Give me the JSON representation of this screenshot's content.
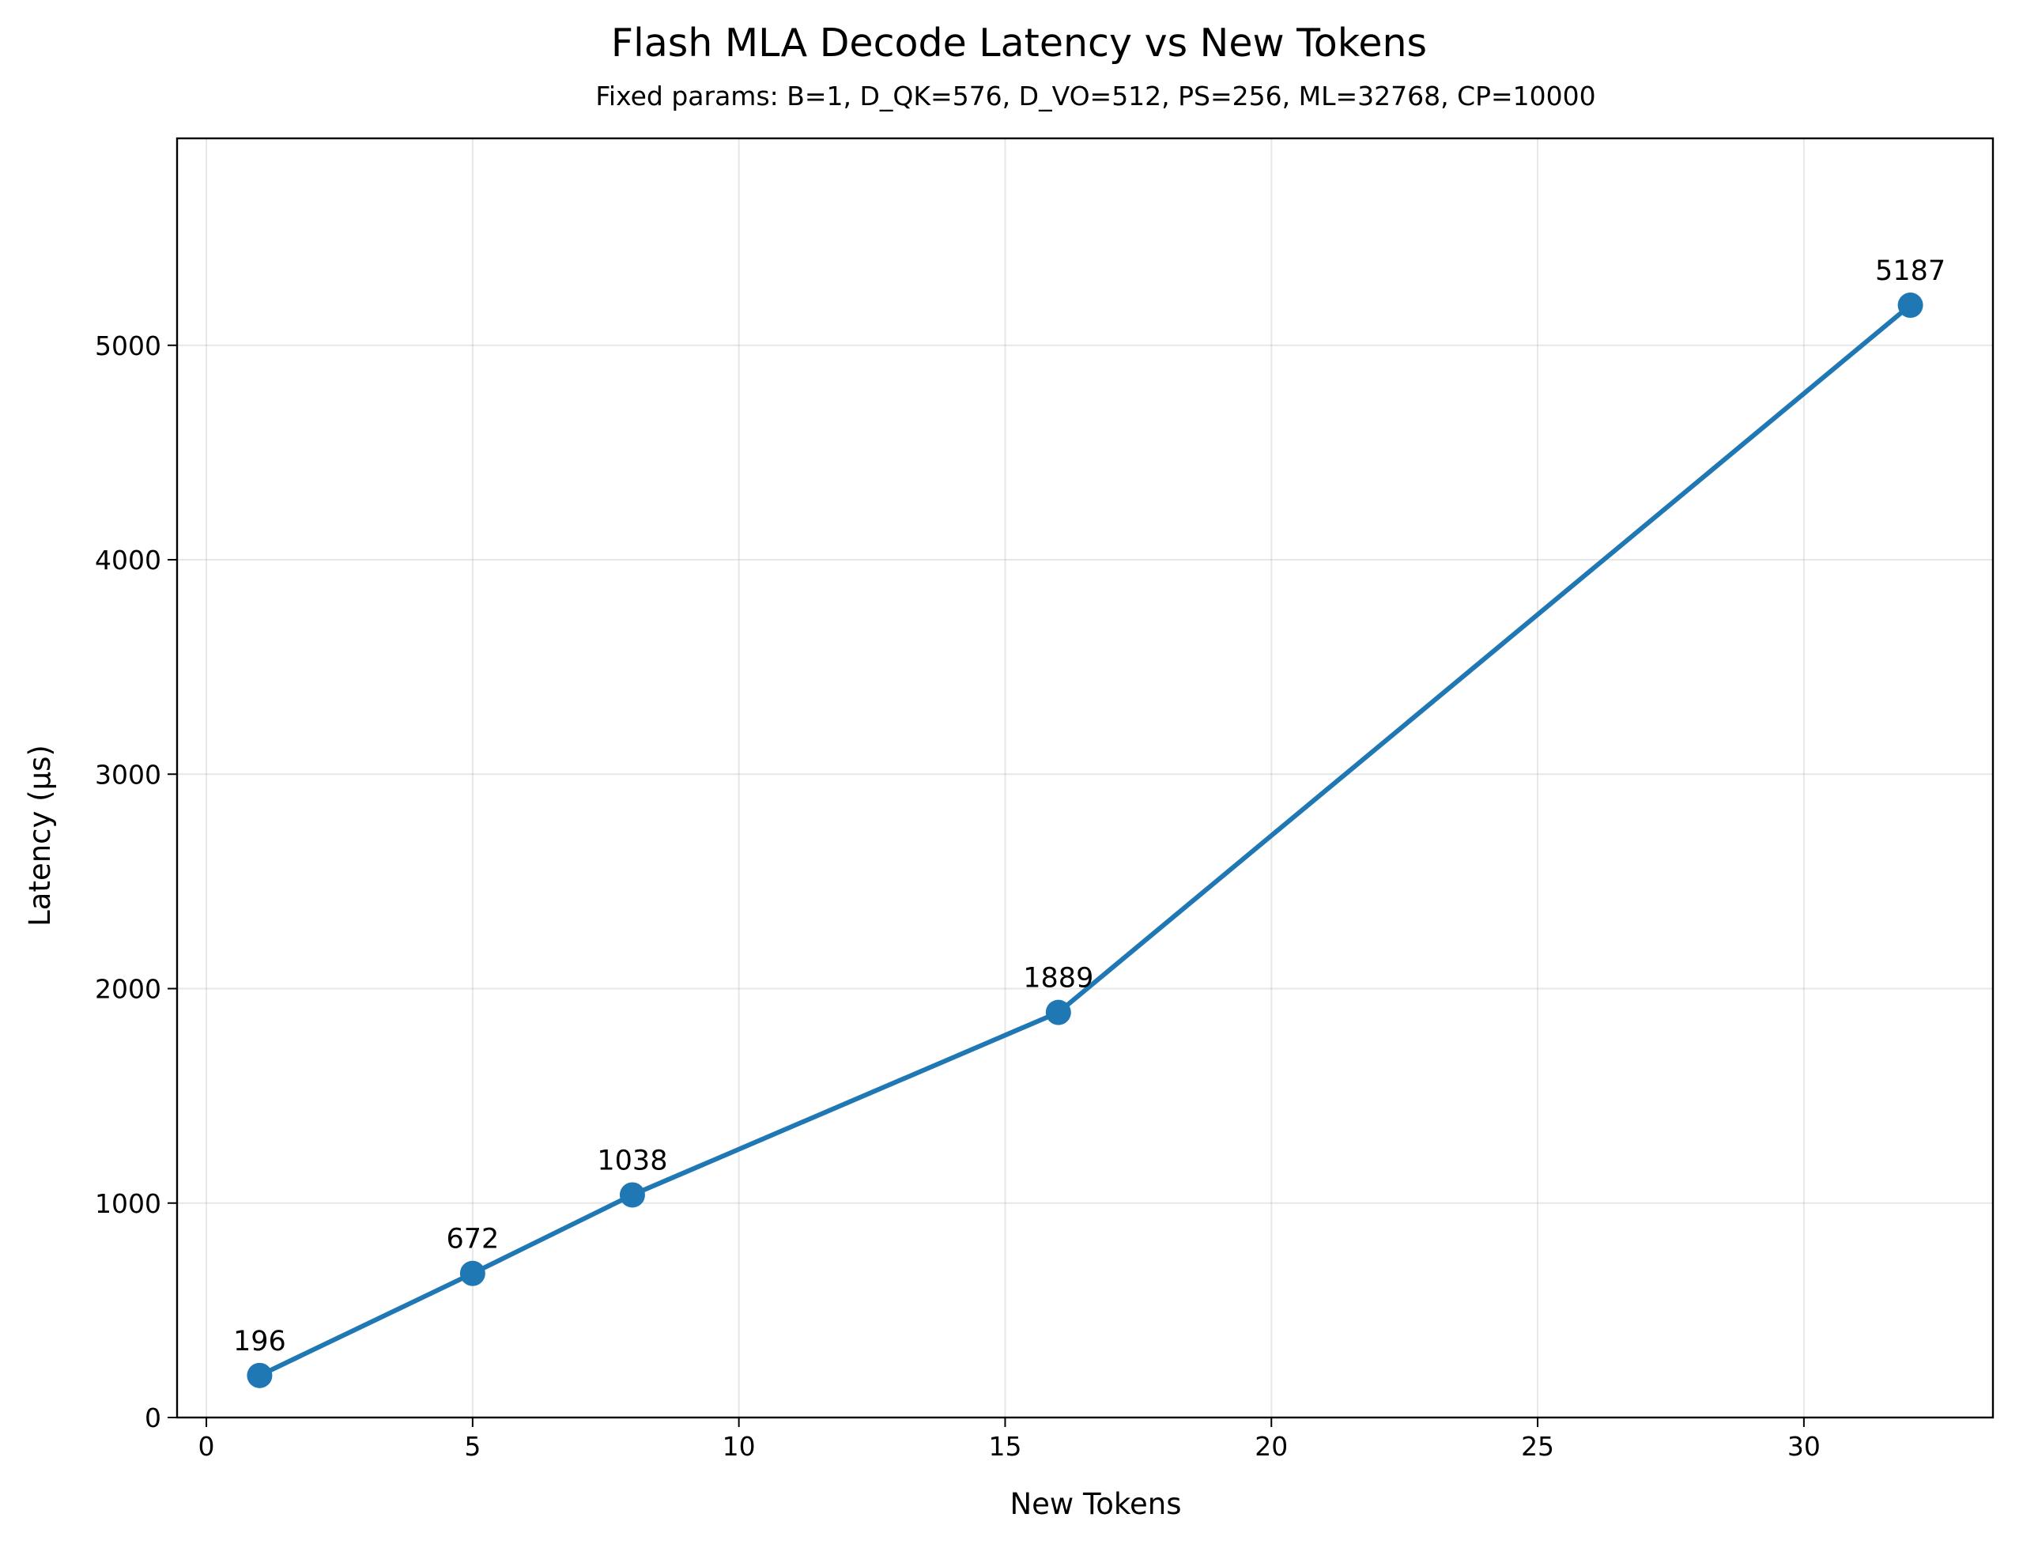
{
  "chart_data": {
    "type": "line",
    "title": "Flash MLA Decode Latency vs New Tokens",
    "subtitle": "Fixed params: B=1, D_QK=576, D_VO=512, PS=256, ML=32768, CP=10000",
    "xlabel": "New Tokens",
    "ylabel": "Latency (µs)",
    "xlim": [
      -0.55,
      33.55
    ],
    "ylim": [
      0,
      5965
    ],
    "x_ticks": [
      0,
      5,
      10,
      15,
      20,
      25,
      30
    ],
    "y_ticks": [
      0,
      1000,
      2000,
      3000,
      4000,
      5000
    ],
    "grid": true,
    "series": [
      {
        "x": [
          1,
          5,
          8,
          16,
          32
        ],
        "y": [
          196,
          672,
          1038,
          1889,
          5187
        ],
        "labels": [
          "196",
          "672",
          "1038",
          "1889",
          "5187"
        ],
        "color": "#1f77b4"
      }
    ]
  }
}
